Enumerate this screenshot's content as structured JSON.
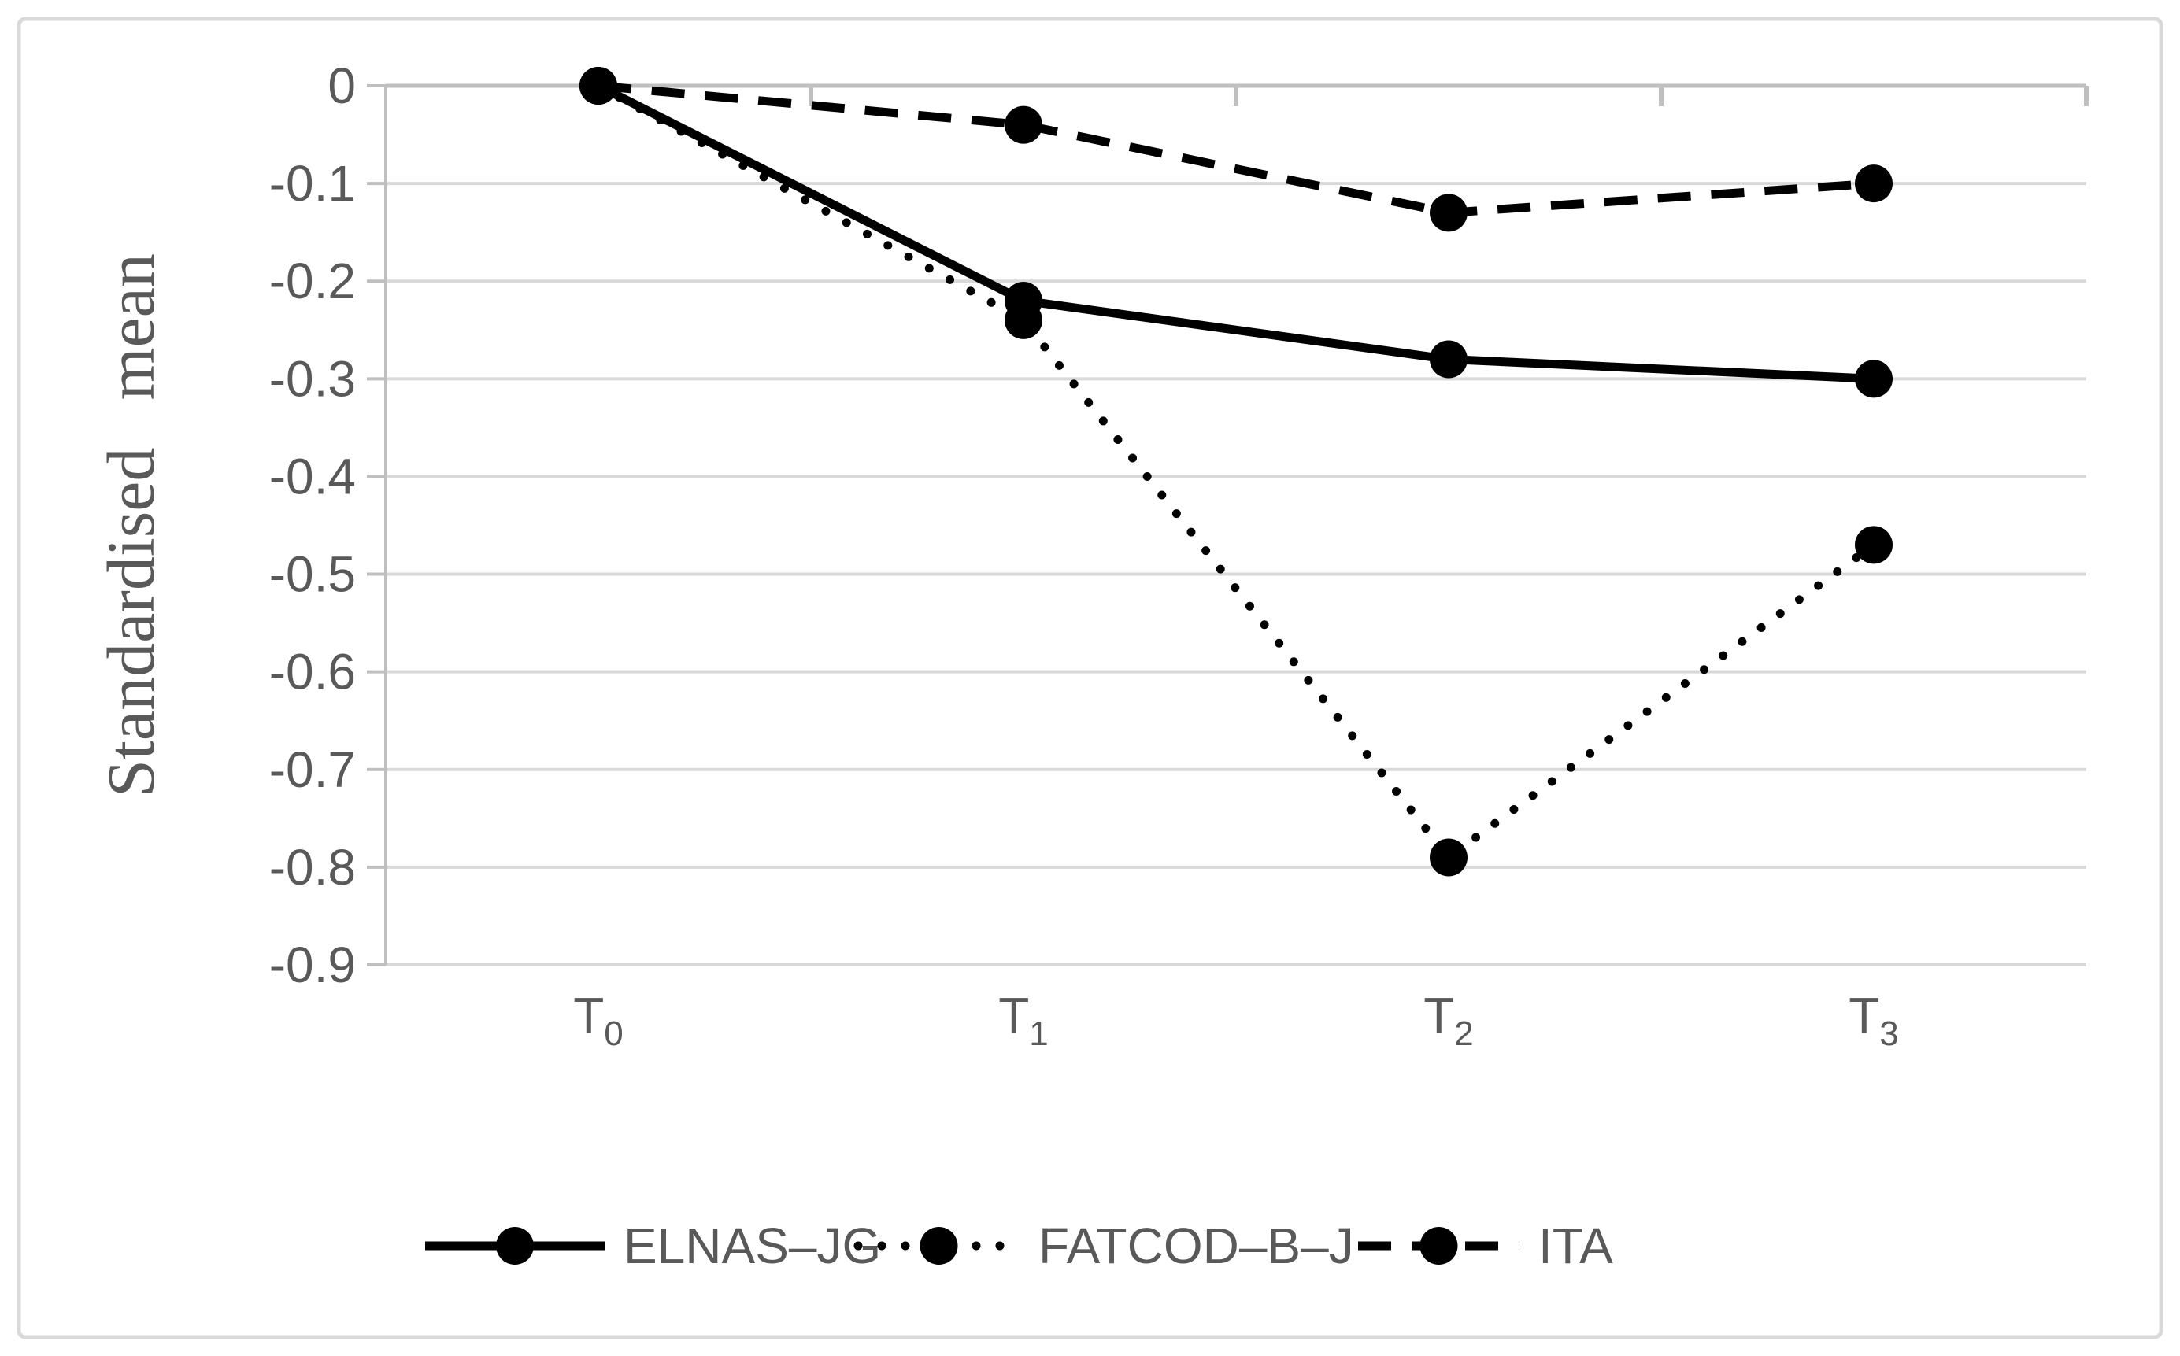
{
  "page": {
    "background": "#ffffff",
    "border_color": "#d9d9d9"
  },
  "chart_data": {
    "type": "line",
    "title": "",
    "xlabel": "",
    "ylabel": "Standardised mean",
    "categories": [
      {
        "base": "T",
        "sub": "0"
      },
      {
        "base": "T",
        "sub": "1"
      },
      {
        "base": "T",
        "sub": "2"
      },
      {
        "base": "T",
        "sub": "3"
      }
    ],
    "series": [
      {
        "name": "ELNAS–JG",
        "style": "solid",
        "color": "#000000",
        "values": [
          0,
          -0.22,
          -0.28,
          -0.3
        ]
      },
      {
        "name": "FATCOD–B–J",
        "style": "dotted",
        "color": "#000000",
        "values": [
          0,
          -0.24,
          -0.79,
          -0.47
        ]
      },
      {
        "name": "ITA",
        "style": "dashed",
        "color": "#000000",
        "values": [
          0,
          -0.04,
          -0.13,
          -0.1
        ]
      }
    ],
    "y_ticks": [
      "0",
      "-0.1",
      "-0.2",
      "-0.3",
      "-0.4",
      "-0.5",
      "-0.6",
      "-0.7",
      "-0.8",
      "-0.9"
    ],
    "y_tick_values": [
      0,
      -0.1,
      -0.2,
      -0.3,
      -0.4,
      -0.5,
      -0.6,
      -0.7,
      -0.8,
      -0.9
    ],
    "ylim": [
      -0.9,
      0
    ],
    "grid": "horizontal",
    "legend_position": "bottom",
    "colors": {
      "axis_text": "#595959",
      "gridline": "#d9d9d9",
      "axis_line": "#bfbfbf",
      "series": "#000000"
    }
  }
}
